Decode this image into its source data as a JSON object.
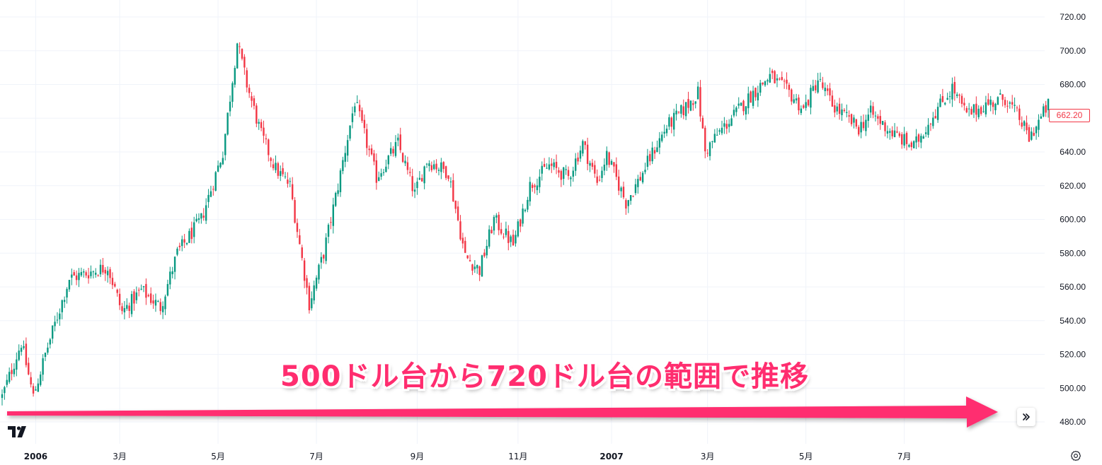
{
  "chart_data": {
    "type": "candlestick",
    "ylim": [
      470,
      730
    ],
    "y_ticks": [
      "720.00",
      "700.00",
      "680.00",
      "660.00",
      "640.00",
      "620.00",
      "600.00",
      "580.00",
      "560.00",
      "540.00",
      "520.00",
      "500.00",
      "480.00"
    ],
    "x_ticks": [
      {
        "label": "2006",
        "bold": true,
        "index": 14
      },
      {
        "label": "3月",
        "bold": false,
        "index": 49
      },
      {
        "label": "5月",
        "bold": false,
        "index": 90
      },
      {
        "label": "7月",
        "bold": false,
        "index": 131
      },
      {
        "label": "9月",
        "bold": false,
        "index": 173
      },
      {
        "label": "11月",
        "bold": false,
        "index": 215
      },
      {
        "label": "2007",
        "bold": true,
        "index": 254
      },
      {
        "label": "3月",
        "bold": false,
        "index": 294
      },
      {
        "label": "5月",
        "bold": false,
        "index": 335
      },
      {
        "label": "7月",
        "bold": false,
        "index": 376
      }
    ],
    "close_path": [
      [
        0,
        495
      ],
      [
        8,
        527
      ],
      [
        13,
        495
      ],
      [
        18,
        520
      ],
      [
        28,
        565
      ],
      [
        44,
        572
      ],
      [
        50,
        545
      ],
      [
        58,
        558
      ],
      [
        66,
        548
      ],
      [
        73,
        580
      ],
      [
        83,
        600
      ],
      [
        92,
        640
      ],
      [
        98,
        705
      ],
      [
        102,
        680
      ],
      [
        108,
        650
      ],
      [
        114,
        630
      ],
      [
        120,
        620
      ],
      [
        128,
        550
      ],
      [
        134,
        580
      ],
      [
        140,
        620
      ],
      [
        147,
        670
      ],
      [
        156,
        625
      ],
      [
        165,
        645
      ],
      [
        172,
        615
      ],
      [
        177,
        635
      ],
      [
        186,
        628
      ],
      [
        193,
        578
      ],
      [
        199,
        570
      ],
      [
        205,
        600
      ],
      [
        213,
        585
      ],
      [
        220,
        620
      ],
      [
        228,
        632
      ],
      [
        236,
        625
      ],
      [
        242,
        645
      ],
      [
        248,
        622
      ],
      [
        252,
        638
      ],
      [
        260,
        610
      ],
      [
        266,
        625
      ],
      [
        272,
        642
      ],
      [
        277,
        655
      ],
      [
        284,
        665
      ],
      [
        290,
        675
      ],
      [
        293,
        640
      ],
      [
        298,
        650
      ],
      [
        304,
        660
      ],
      [
        313,
        675
      ],
      [
        320,
        685
      ],
      [
        328,
        675
      ],
      [
        334,
        665
      ],
      [
        340,
        683
      ],
      [
        346,
        668
      ],
      [
        352,
        660
      ],
      [
        357,
        654
      ],
      [
        362,
        663
      ],
      [
        372,
        650
      ],
      [
        380,
        643
      ],
      [
        388,
        662
      ],
      [
        396,
        678
      ],
      [
        402,
        662
      ],
      [
        410,
        668
      ],
      [
        418,
        672
      ],
      [
        424,
        660
      ],
      [
        428,
        648
      ],
      [
        436,
        668
      ]
    ],
    "up_color": "#089981",
    "down_color": "#f23645",
    "last_price": "662.20",
    "annotation": "500ドル台から720ドル台の範囲で推移"
  },
  "colors": {
    "annotation": "#ff2d6f",
    "grid": "#f0f3fa",
    "axis_text": "#131722"
  },
  "icons": {
    "logo": "tradingview-logo-icon",
    "scroll": "scroll-to-realtime-icon",
    "settings": "settings-gear-icon"
  }
}
